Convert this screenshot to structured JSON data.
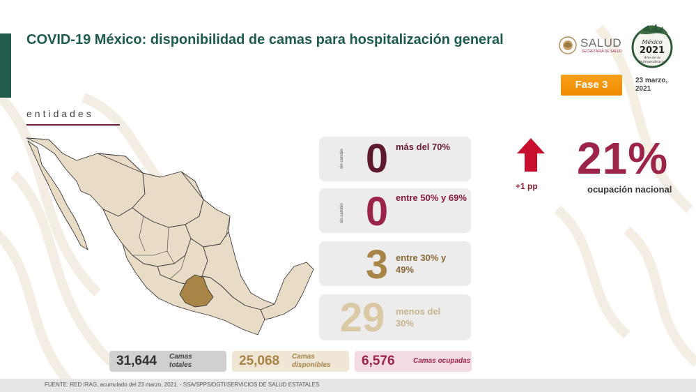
{
  "header": {
    "title": "COVID-19 México: disponibilidad de camas para hospitalización general",
    "logo_text": "SALUD",
    "logo_subtext": "SECRETARÍA DE SALUD",
    "emblem_alt": "México 2021 Año de la Independencia",
    "phase": "Fase 3",
    "date": "23 marzo, 2021"
  },
  "section_label": "entidades",
  "cards": [
    {
      "side": "sin cambio",
      "value": "0",
      "label": "más del 70%",
      "color": "#5c1a2c",
      "label_color": "#6b1b33"
    },
    {
      "side": "sin cambio",
      "value": "0",
      "label": "entre 50% y 69%",
      "color": "#9d2449",
      "label_color": "#8a1a3d"
    },
    {
      "side": "",
      "value": "3",
      "label": "entre 30% y 49%",
      "color": "#a88447",
      "label_color": "#8a6a36"
    },
    {
      "side": "",
      "value": "29",
      "label": "menos del 30%",
      "color": "#dac9a4",
      "label_color": "#c9b48a"
    }
  ],
  "national": {
    "change": "+1 pp",
    "value": "21%",
    "label": "ocupación nacional"
  },
  "stats": [
    {
      "value": "31,644",
      "label": "Camas totales",
      "bg": "#d0d0d0",
      "color": "#333333"
    },
    {
      "value": "25,068",
      "label": "Camas disponibles",
      "bg": "#efe6d6",
      "color": "#a88447"
    },
    {
      "value": "6,576",
      "label": "Camas ocupadas",
      "bg": "#f3dbe1",
      "color": "#9d2449"
    }
  ],
  "footer": "FUENTE: RED IRAG, acumulado del 23 marzo, 2021. -  SSA/SPPS/DGTI/SERVICIOS DE SALUD ESTATALES",
  "colors": {
    "brand_green": "#235b4e",
    "brand_wine": "#9d2449",
    "accent_orange": "#f39c12",
    "map_fill": "#e8dcc6",
    "map_highlight": "#a88447"
  }
}
